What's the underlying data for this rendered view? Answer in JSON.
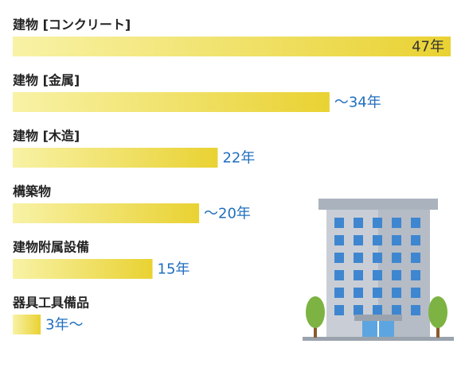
{
  "chart_data": {
    "type": "bar",
    "orientation": "horizontal",
    "categories": [
      "建物 [コンクリート]",
      "建物 [金属]",
      "建物 [木造]",
      "構築物",
      "建物附属設備",
      "器具工具備品"
    ],
    "values": [
      47,
      34,
      22,
      20,
      15,
      3
    ],
    "value_labels": [
      "47年",
      "〜34年",
      "22年",
      "〜20年",
      "15年",
      "3年〜"
    ],
    "color": "#e9d232",
    "label_color": "#1f6fbf",
    "inside_label_color": "#333333"
  }
}
